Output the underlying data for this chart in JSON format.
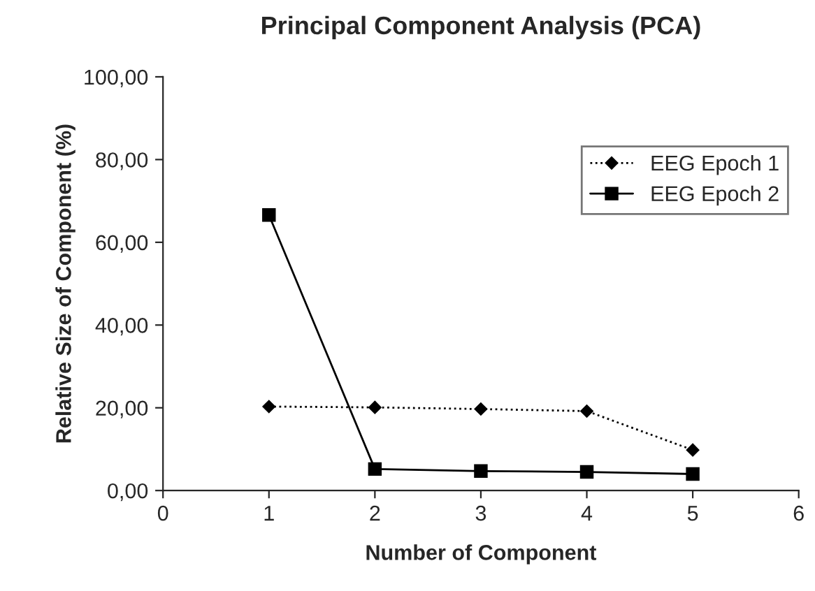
{
  "chart_data": {
    "type": "line",
    "title": "Principal Component Analysis (PCA)",
    "xlabel": "Number of Component",
    "ylabel": "Relative Size of Component (%)",
    "x": [
      1,
      2,
      3,
      4,
      5
    ],
    "series": [
      {
        "name": "EEG Epoch 1",
        "color": "#000000",
        "marker": "diamond",
        "line_style": "dotted",
        "values": [
          20.3,
          20.1,
          19.7,
          19.2,
          9.8
        ]
      },
      {
        "name": "EEG Epoch 2",
        "color": "#000000",
        "marker": "square",
        "line_style": "solid",
        "values": [
          66.6,
          5.2,
          4.7,
          4.5,
          4.0
        ]
      }
    ],
    "xlim": [
      0,
      6
    ],
    "xticks": [
      0,
      1,
      2,
      3,
      4,
      5,
      6
    ],
    "ylim": [
      0,
      100
    ],
    "yticks": [
      {
        "value": 0,
        "label": "0,00"
      },
      {
        "value": 20,
        "label": "20,00"
      },
      {
        "value": 40,
        "label": "40,00"
      },
      {
        "value": 60,
        "label": "60,00"
      },
      {
        "value": 80,
        "label": "80,00"
      },
      {
        "value": 100,
        "label": "100,00"
      }
    ],
    "grid": false,
    "legend": "right"
  }
}
